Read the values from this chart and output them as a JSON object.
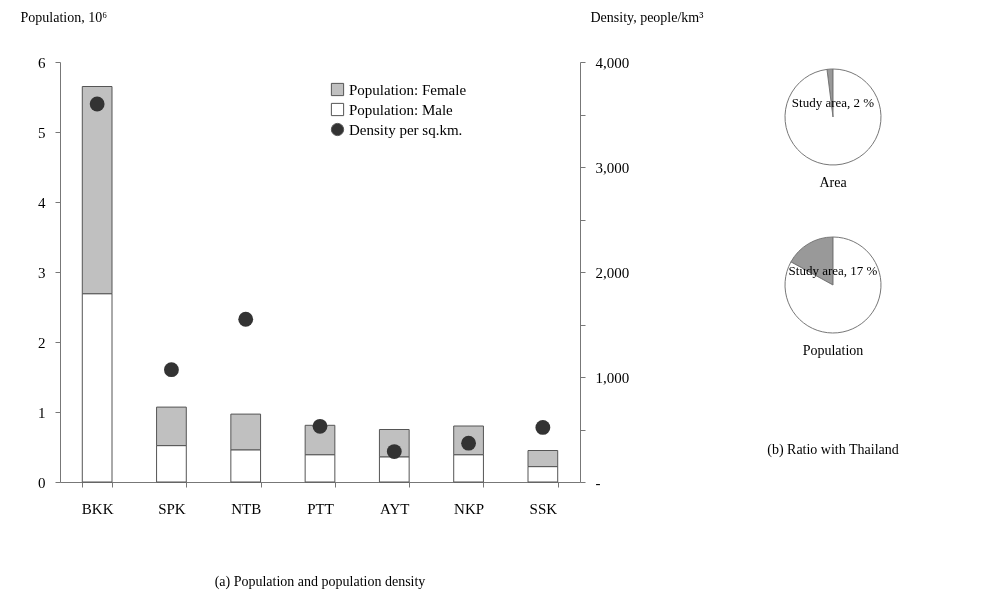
{
  "chart_data": [
    {
      "type": "bar",
      "categories": [
        "BKK",
        "SPK",
        "NTB",
        "PTT",
        "AYT",
        "NKP",
        "SSK"
      ],
      "stacked": true,
      "ylabel": "Population, 10⁶",
      "y2label": "Density, people/km³",
      "ylim": [
        0,
        6
      ],
      "yticks": [
        0,
        1,
        2,
        3,
        4,
        5,
        6
      ],
      "y2lim": [
        0,
        4000
      ],
      "y2ticks": [
        {
          "value": 0,
          "label": "-"
        },
        {
          "value": 500,
          "label": null
        },
        {
          "value": 1000,
          "label": "1,000"
        },
        {
          "value": 1500,
          "label": null
        },
        {
          "value": 2000,
          "label": "2,000"
        },
        {
          "value": 2500,
          "label": null
        },
        {
          "value": 3000,
          "label": "3,000"
        },
        {
          "value": 3500,
          "label": null
        },
        {
          "value": 4000,
          "label": "4,000"
        }
      ],
      "legend": "top right",
      "marker": "circle",
      "annotations": [
        "(a) Population and population density"
      ],
      "series": [
        {
          "name": "Population: Male",
          "color": "#ffffff",
          "values": [
            2.69,
            0.52,
            0.46,
            0.39,
            0.36,
            0.39,
            0.22
          ]
        },
        {
          "name": "Population: Female",
          "color": "#c0c0c0",
          "values": [
            2.96,
            0.55,
            0.51,
            0.42,
            0.39,
            0.41,
            0.23
          ]
        },
        {
          "name": "Density per sq.km.",
          "type": "scatter",
          "axis": "y2",
          "color": "#333333",
          "values": [
            3600,
            1070,
            1550,
            530,
            290,
            370,
            520
          ]
        }
      ]
    },
    {
      "type": "pie",
      "title": "Area",
      "categories": [
        null,
        null
      ],
      "values": [
        2,
        98
      ],
      "colors": [
        "#999999",
        "#ffffff"
      ],
      "value_labels": [
        "Study area, 2 %",
        null
      ]
    },
    {
      "type": "pie",
      "title": "Population",
      "categories": [
        null,
        null
      ],
      "values": [
        17,
        83
      ],
      "colors": [
        "#999999",
        "#ffffff"
      ],
      "value_labels": [
        "Study area, 17 %",
        null
      ],
      "annotations": [
        "(b) Ratio with Thailand"
      ]
    }
  ]
}
